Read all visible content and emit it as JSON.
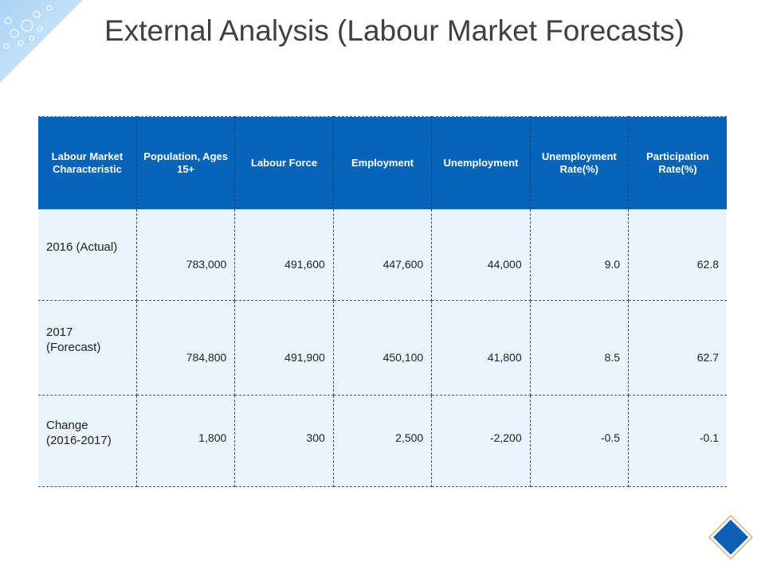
{
  "title": "External Analysis (Labour Market Forecasts)",
  "colors": {
    "header_bg": "#0563b8",
    "row_bg": "#eaf4fd",
    "diamond": "#0d5fb5"
  },
  "table": {
    "headers": [
      "Labour Market Characteristic",
      "Population, Ages 15+",
      "Labour Force",
      "Employment",
      "Unemployment",
      "Unemployment Rate(%)",
      "Participation Rate(%)"
    ],
    "rows": [
      {
        "label": "2016 (Actual)",
        "values": [
          "783,000",
          "491,600",
          "447,600",
          "44,000",
          "9.0",
          "62.8"
        ]
      },
      {
        "label": "2017 (Forecast)",
        "values": [
          "784,800",
          "491,900",
          "450,100",
          "41,800",
          "8.5",
          "62.7"
        ]
      },
      {
        "label": "Change (2016-2017)",
        "values": [
          "1,800",
          "300",
          "2,500",
          "-2,200",
          "-0.5",
          "-0.1"
        ]
      }
    ]
  },
  "icons": {
    "corner": "bubbles-corner-decoration",
    "diamond": "diamond-icon"
  }
}
